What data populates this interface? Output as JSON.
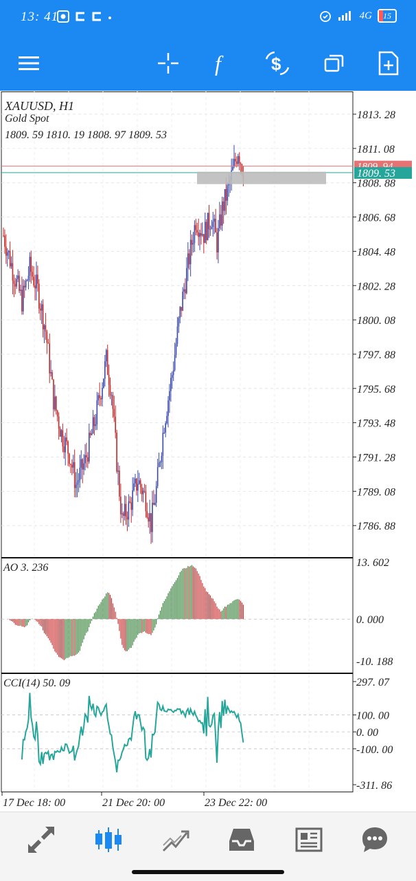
{
  "status_bar": {
    "time": "13: 41",
    "network": "4G",
    "battery": "15"
  },
  "toolbar": {
    "items": [
      {
        "name": "menu",
        "icon": "hamburger-menu-icon"
      },
      {
        "name": "crosshair",
        "icon": "crosshair-icon"
      },
      {
        "name": "indicators",
        "icon": "function-f-icon"
      },
      {
        "name": "symbol",
        "icon": "dollar-exchange-icon"
      },
      {
        "name": "timeframe",
        "icon": "windows-icon"
      },
      {
        "name": "new-order",
        "icon": "add-document-icon"
      }
    ]
  },
  "chart": {
    "symbol_line": "XAUUSD, H1",
    "description": "Gold Spot",
    "ohlc": "1809. 59 1810. 19 1808. 97 1809. 53",
    "price_labels": [
      "1813. 28",
      "1811. 08",
      "1808. 88",
      "1806. 68",
      "1804. 48",
      "1802. 28",
      "1800. 08",
      "1797. 88",
      "1795. 68",
      "1793. 48",
      "1791. 28",
      "1789. 08",
      "1786. 88"
    ],
    "ask_label": "1809. 94",
    "bid_label": "1809. 53",
    "colors": {
      "bull": "#3949ab",
      "bear": "#c62828",
      "ask": "#e57373",
      "bid": "#26a69a",
      "ao_up": "#2e7d32",
      "ao_down": "#c62828",
      "cci": "#26a69a"
    }
  },
  "ao": {
    "label": "AO 3. 236",
    "scale": [
      "13. 602",
      "0. 000",
      "-10. 188"
    ]
  },
  "cci": {
    "label": "CCI(14) 50. 09",
    "scale": [
      "297. 07",
      "100. 00",
      "0. 00",
      "-100. 00",
      "-311. 86"
    ]
  },
  "time_axis": [
    "17 Dec 18: 00",
    "21 Dec 20: 00",
    "23 Dec 22: 00"
  ],
  "bottom_nav": [
    {
      "name": "quotes",
      "icon": "arrows-diagonal-icon"
    },
    {
      "name": "chart",
      "icon": "candlestick-icon",
      "active": true
    },
    {
      "name": "trade",
      "icon": "trend-chart-icon"
    },
    {
      "name": "history",
      "icon": "inbox-icon"
    },
    {
      "name": "news",
      "icon": "newspaper-icon"
    },
    {
      "name": "messages",
      "icon": "chat-bubble-icon"
    }
  ]
}
